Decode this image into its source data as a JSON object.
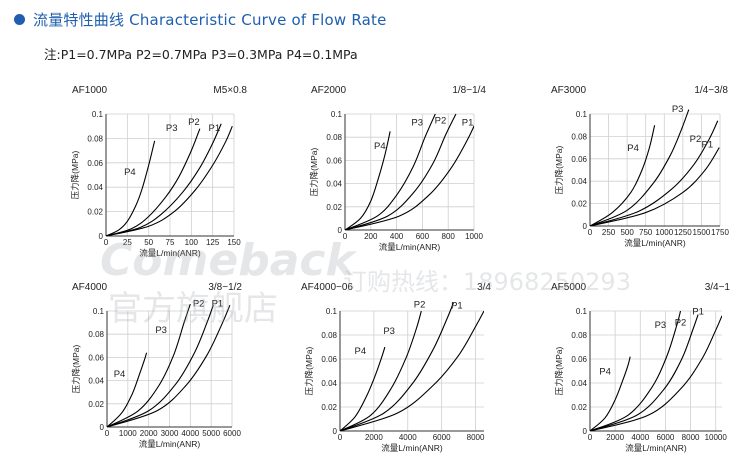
{
  "header": {
    "title": "流量特性曲线 Characteristic Curve of Flow Rate"
  },
  "note": "注:P1=0.7MPa  P2=0.7MPa  P3=0.3MPa  P4=0.1MPa",
  "watermark": {
    "brand": "Comeback",
    "store": "官方旗舰店",
    "hotline": "订购热线：18968250293"
  },
  "colors": {
    "accent": "#1f5fae",
    "grid": "#cfcfcf",
    "line": "#000000"
  },
  "chart_data": [
    {
      "type": "line",
      "model": "AF1000",
      "size": "M5×0.8",
      "xlabel": "流量L/min(ANR)",
      "ylabel": "压力降(MPa)",
      "xlim": [
        0,
        150
      ],
      "ylim": [
        0,
        0.1
      ],
      "xticks": [
        0,
        25,
        50,
        75,
        100,
        125,
        150
      ],
      "xtick_labels": [
        "0",
        "25",
        "50",
        "75",
        "100",
        "125",
        "150"
      ],
      "yticks": [
        0,
        0.02,
        0.04,
        0.06,
        0.08,
        0.1
      ],
      "ytick_labels": [
        "0",
        "0.02",
        "0.04",
        "0.06",
        "0.08",
        "0.1"
      ],
      "series": [
        {
          "name": "P4",
          "x": [
            0,
            15,
            25,
            35,
            42,
            50,
            57
          ],
          "y": [
            0,
            0.005,
            0.012,
            0.025,
            0.038,
            0.058,
            0.078
          ]
        },
        {
          "name": "P3",
          "x": [
            0,
            30,
            50,
            70,
            85,
            100,
            110
          ],
          "y": [
            0,
            0.006,
            0.016,
            0.032,
            0.048,
            0.07,
            0.088
          ]
        },
        {
          "name": "P2",
          "x": [
            0,
            40,
            65,
            90,
            110,
            125,
            135
          ],
          "y": [
            0,
            0.007,
            0.018,
            0.036,
            0.056,
            0.076,
            0.092
          ]
        },
        {
          "name": "P1",
          "x": [
            0,
            50,
            80,
            105,
            125,
            140,
            148
          ],
          "y": [
            0,
            0.008,
            0.02,
            0.038,
            0.058,
            0.077,
            0.09
          ]
        }
      ],
      "label_pos": [
        [
          28,
          0.05
        ],
        [
          77,
          0.086
        ],
        [
          103,
          0.091
        ],
        [
          127,
          0.086
        ]
      ]
    },
    {
      "type": "line",
      "model": "AF2000",
      "size": "1/8−1/4",
      "xlabel": "流量L/min(ANR)",
      "ylabel": "压力降(MPa)",
      "xlim": [
        0,
        1000
      ],
      "ylim": [
        0,
        0.1
      ],
      "xticks": [
        0,
        200,
        400,
        600,
        800,
        1000
      ],
      "xtick_labels": [
        "0",
        "200",
        "400",
        "600",
        "800",
        "1000"
      ],
      "yticks": [
        0,
        0.02,
        0.04,
        0.06,
        0.08,
        0.1
      ],
      "ytick_labels": [
        "0",
        "0.02",
        "0.04",
        "0.06",
        "0.08",
        "0.1"
      ],
      "series": [
        {
          "name": "P4",
          "x": [
            0,
            120,
            200,
            260,
            310,
            350
          ],
          "y": [
            0,
            0.01,
            0.025,
            0.045,
            0.065,
            0.085
          ]
        },
        {
          "name": "P3",
          "x": [
            0,
            250,
            400,
            530,
            620,
            700
          ],
          "y": [
            0,
            0.012,
            0.03,
            0.055,
            0.08,
            0.1
          ]
        },
        {
          "name": "P2",
          "x": [
            0,
            330,
            530,
            680,
            780,
            860
          ],
          "y": [
            0,
            0.012,
            0.032,
            0.057,
            0.082,
            0.1
          ]
        },
        {
          "name": "P1",
          "x": [
            0,
            420,
            650,
            820,
            950,
            1030
          ],
          "y": [
            0,
            0.012,
            0.03,
            0.053,
            0.078,
            0.097
          ]
        }
      ],
      "label_pos": [
        [
          270,
          0.07
        ],
        [
          560,
          0.09
        ],
        [
          740,
          0.092
        ],
        [
          950,
          0.09
        ]
      ]
    },
    {
      "type": "line",
      "model": "AF3000",
      "size": "1/4−3/8",
      "xlabel": "流量L/min(ANR)",
      "ylabel": "压力降(MPa)",
      "xlim": [
        0,
        1750
      ],
      "ylim": [
        0,
        0.1
      ],
      "xticks": [
        0,
        250,
        500,
        750,
        1000,
        1250,
        1500,
        1750
      ],
      "xtick_labels": [
        "0",
        "250",
        "500",
        "750",
        "1000",
        "1250",
        "1500",
        "1750"
      ],
      "yticks": [
        0,
        0.02,
        0.04,
        0.06,
        0.08,
        0.1
      ],
      "ytick_labels": [
        "0",
        "0.02",
        "0.04",
        "0.06",
        "0.08",
        "0.1"
      ],
      "series": [
        {
          "name": "P4",
          "x": [
            0,
            300,
            550,
            700,
            800,
            870
          ],
          "y": [
            0,
            0.012,
            0.03,
            0.05,
            0.07,
            0.09
          ]
        },
        {
          "name": "P3",
          "x": [
            0,
            500,
            850,
            1080,
            1230,
            1330
          ],
          "y": [
            0,
            0.014,
            0.038,
            0.063,
            0.086,
            0.104
          ]
        },
        {
          "name": "P2",
          "x": [
            0,
            650,
            1100,
            1400,
            1600,
            1720
          ],
          "y": [
            0,
            0.013,
            0.033,
            0.055,
            0.077,
            0.094
          ]
        },
        {
          "name": "P1",
          "x": [
            0,
            750,
            1250,
            1550,
            1740
          ],
          "y": [
            0,
            0.012,
            0.03,
            0.05,
            0.07
          ]
        }
      ],
      "label_pos": [
        [
          580,
          0.067
        ],
        [
          1180,
          0.102
        ],
        [
          1420,
          0.075
        ],
        [
          1580,
          0.07
        ]
      ]
    },
    {
      "type": "line",
      "model": "AF4000",
      "size": "3/8−1/2",
      "xlabel": "流量L/min(ANR)",
      "ylabel": "压力降(MPa)",
      "xlim": [
        0,
        6000
      ],
      "ylim": [
        0,
        0.1
      ],
      "xticks": [
        0,
        1000,
        2000,
        3000,
        4000,
        5000,
        6000
      ],
      "xtick_labels": [
        "0",
        "1000",
        "2000",
        "3000",
        "4000",
        "5000",
        "6000"
      ],
      "yticks": [
        0,
        0.02,
        0.04,
        0.06,
        0.08,
        0.1
      ],
      "ytick_labels": [
        "0",
        "0.02",
        "0.04",
        "0.06",
        "0.08",
        "0.1"
      ],
      "series": [
        {
          "name": "P4",
          "x": [
            0,
            700,
            1200,
            1550,
            1800,
            1900
          ],
          "y": [
            0,
            0.012,
            0.028,
            0.045,
            0.058,
            0.064
          ]
        },
        {
          "name": "P3",
          "x": [
            0,
            1500,
            2500,
            3200,
            3700,
            4000
          ],
          "y": [
            0,
            0.014,
            0.036,
            0.062,
            0.09,
            0.106
          ]
        },
        {
          "name": "P2",
          "x": [
            0,
            2000,
            3300,
            4200,
            4800,
            5100
          ],
          "y": [
            0,
            0.014,
            0.037,
            0.064,
            0.09,
            0.105
          ]
        },
        {
          "name": "P1",
          "x": [
            0,
            2400,
            3800,
            4800,
            5500,
            5900
          ],
          "y": [
            0,
            0.014,
            0.036,
            0.062,
            0.088,
            0.105
          ]
        }
      ],
      "label_pos": [
        [
          600,
          0.043
        ],
        [
          2600,
          0.081
        ],
        [
          4400,
          0.104
        ],
        [
          5300,
          0.104
        ]
      ]
    },
    {
      "type": "line",
      "model": "AF4000−06",
      "size": "3/4",
      "xlabel": "流量L/min(ANR)",
      "ylabel": "压力降(MPa)",
      "xlim": [
        0,
        8500
      ],
      "ylim": [
        0,
        0.1
      ],
      "xticks": [
        0,
        2000,
        4000,
        6000,
        8000
      ],
      "xtick_labels": [
        "0",
        "2000",
        "4000",
        "6000",
        "8000"
      ],
      "yticks": [
        0,
        0.02,
        0.04,
        0.06,
        0.08,
        0.1
      ],
      "ytick_labels": [
        "0",
        "0.02",
        "0.04",
        "0.06",
        "0.08",
        "0.1"
      ],
      "series": [
        {
          "name": "P4",
          "x": [
            0,
            900,
            1600,
            2100,
            2450,
            2650
          ],
          "y": [
            0,
            0.012,
            0.03,
            0.047,
            0.061,
            0.07
          ]
        },
        {
          "name": "P3",
          "x": [
            0,
            1800,
            3000,
            3900,
            4500,
            4800
          ],
          "y": [
            0,
            0.013,
            0.035,
            0.061,
            0.085,
            0.1
          ]
        },
        {
          "name": "P2",
          "x": [
            0,
            2600,
            4300,
            5500,
            6300,
            6700
          ],
          "y": [
            0,
            0.015,
            0.04,
            0.068,
            0.093,
            0.107
          ]
        },
        {
          "name": "P1",
          "x": [
            0,
            3400,
            5500,
            7000,
            8000,
            8500
          ],
          "y": [
            0,
            0.015,
            0.038,
            0.063,
            0.087,
            0.1
          ]
        }
      ],
      "label_pos": [
        [
          1200,
          0.064
        ],
        [
          2900,
          0.081
        ],
        [
          4700,
          0.103
        ],
        [
          6900,
          0.102
        ]
      ]
    },
    {
      "type": "line",
      "model": "AF5000",
      "size": "3/4−1",
      "xlabel": "流量L/min(ANR)",
      "ylabel": "压力降(MPa)",
      "xlim": [
        0,
        10500
      ],
      "ylim": [
        0,
        0.1
      ],
      "xticks": [
        0,
        2000,
        4000,
        6000,
        8000,
        10000
      ],
      "xtick_labels": [
        "0",
        "2000",
        "4000",
        "6000",
        "8000",
        "10000"
      ],
      "yticks": [
        0,
        0.02,
        0.04,
        0.06,
        0.08,
        0.1
      ],
      "ytick_labels": [
        "0",
        "0.02",
        "0.04",
        "0.06",
        "0.08",
        "0.1"
      ],
      "series": [
        {
          "name": "P4",
          "x": [
            0,
            1200,
            2000,
            2600,
            3000,
            3200
          ],
          "y": [
            0,
            0.011,
            0.026,
            0.042,
            0.054,
            0.062
          ]
        },
        {
          "name": "P3",
          "x": [
            0,
            3000,
            4900,
            6100,
            6900,
            7200
          ],
          "y": [
            0,
            0.013,
            0.036,
            0.062,
            0.088,
            0.1
          ]
        },
        {
          "name": "P2",
          "x": [
            0,
            3700,
            5900,
            7300,
            8200,
            8600
          ],
          "y": [
            0,
            0.013,
            0.035,
            0.06,
            0.085,
            0.097
          ]
        },
        {
          "name": "P1",
          "x": [
            0,
            4600,
            7200,
            8900,
            10000,
            10500
          ],
          "y": [
            0,
            0.013,
            0.035,
            0.06,
            0.084,
            0.096
          ]
        }
      ],
      "label_pos": [
        [
          1200,
          0.047
        ],
        [
          5600,
          0.086
        ],
        [
          7200,
          0.088
        ],
        [
          8600,
          0.097
        ]
      ]
    }
  ]
}
